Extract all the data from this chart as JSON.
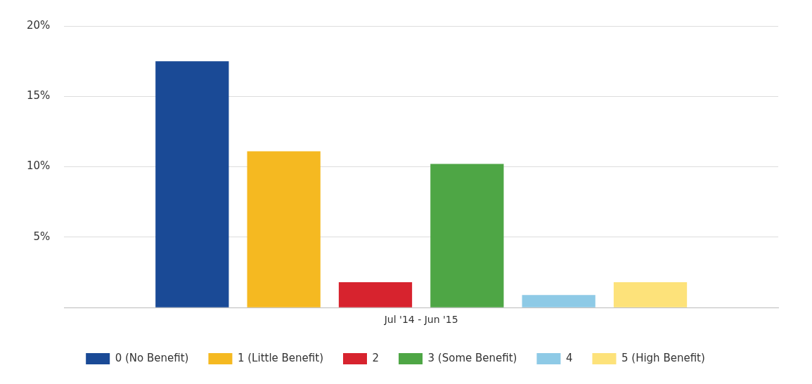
{
  "chart_data": {
    "type": "bar",
    "categories": [
      "Jul '14 - Jun '15"
    ],
    "series": [
      {
        "name": "0 (No Benefit)",
        "color": "#1a4a96",
        "values": [
          17.5
        ]
      },
      {
        "name": "1 (Little Benefit)",
        "color": "#f5b921",
        "values": [
          11.1
        ]
      },
      {
        "name": "2",
        "color": "#d7232e",
        "values": [
          1.8
        ]
      },
      {
        "name": "3 (Some Benefit)",
        "color": "#4ea645",
        "values": [
          10.2
        ]
      },
      {
        "name": "4",
        "color": "#8ecae6",
        "values": [
          0.9
        ]
      },
      {
        "name": "5 (High Benefit)",
        "color": "#fde27a",
        "values": [
          1.8
        ]
      }
    ],
    "ylim": [
      0,
      20
    ],
    "yticks": [
      {
        "value": 0,
        "label": null
      },
      {
        "value": 5,
        "label": "5%"
      },
      {
        "value": 10,
        "label": "10%"
      },
      {
        "value": 15,
        "label": "15%"
      },
      {
        "value": 20,
        "label": "20%"
      }
    ],
    "grid": "y",
    "legend": "bottom"
  }
}
